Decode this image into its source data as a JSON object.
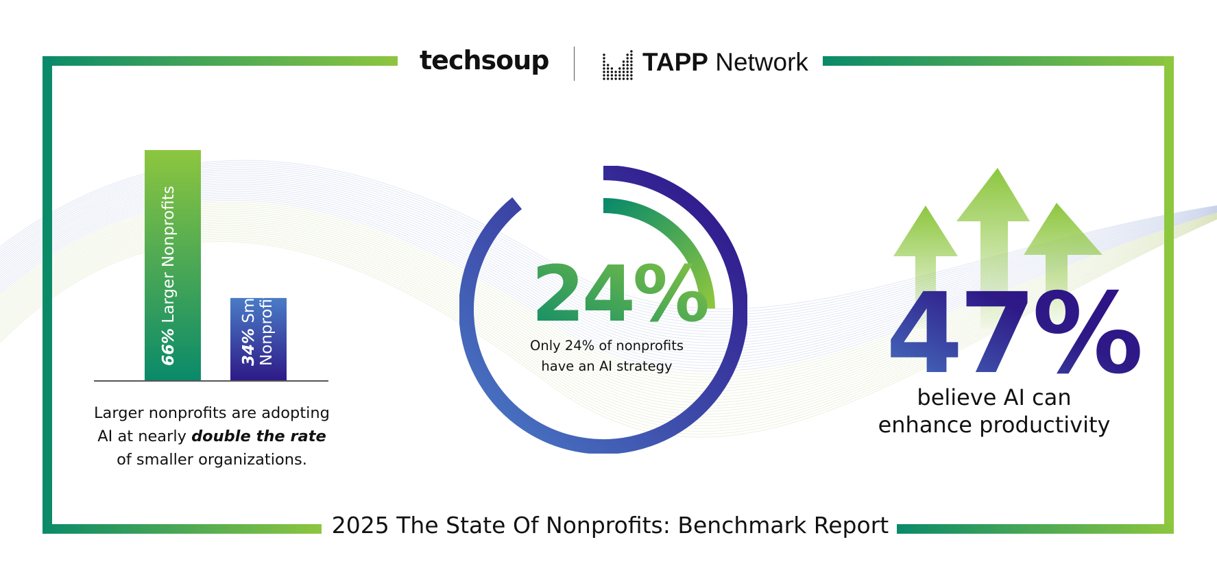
{
  "header": {
    "logo_left": "techsoup",
    "logo_right_bold": "TAPP",
    "logo_right_regular": " Network"
  },
  "left_panel": {
    "bars": [
      {
        "percent": "66%",
        "label": "Larger Nonprofits",
        "value": 66
      },
      {
        "percent": "34%",
        "label_line1": "Smaller",
        "label_line2": "Nonprofits",
        "value": 34
      }
    ],
    "caption_line1": "Larger nonprofits are adopting",
    "caption_line2_pre": "AI at nearly ",
    "caption_line2_em": "double the rate",
    "caption_line3": "of smaller organizations."
  },
  "center_panel": {
    "stat": "24%",
    "stat_value": 24,
    "caption_line1": "Only 24% of nonprofits",
    "caption_line2": "have an AI strategy"
  },
  "right_panel": {
    "stat": "47%",
    "caption_line1": "believe AI can",
    "caption_line2": "enhance productivity"
  },
  "footer": {
    "title": "2025 The State Of Nonprofits: Benchmark Report"
  },
  "colors": {
    "green_dark": "#0a8a6a",
    "green_light": "#8dc63f",
    "blue": "#4a7cc7",
    "purple": "#2e1a87"
  }
}
